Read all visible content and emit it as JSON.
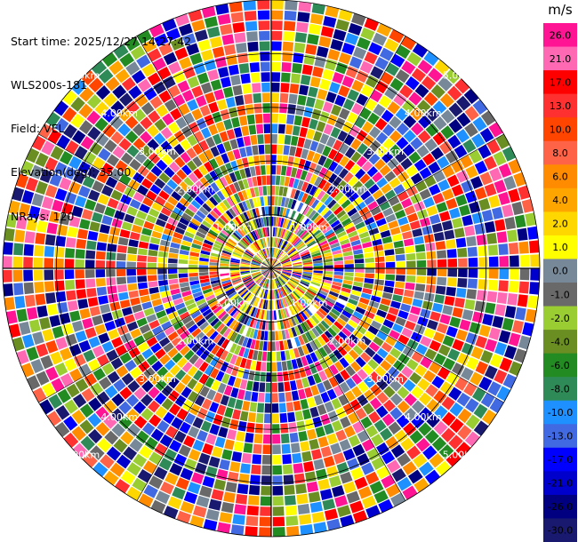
{
  "header": {
    "start_time": "Start time: 2025/12/27 14:27:42",
    "instrument": "WLS200s-181",
    "field": "Field: VEL",
    "elevation": "Elevation(deg): 35.00",
    "nrays": "NRays: 120"
  },
  "chart_data": {
    "type": "heatmap",
    "projection": "polar-ppi",
    "field": "VEL",
    "nrays": 120,
    "range_rings_labels": [
      "1.00km",
      "2.00km",
      "3.00km",
      "4.00km",
      "5.00km"
    ],
    "range_rings_km": [
      1,
      2,
      3,
      4,
      5
    ],
    "max_range_km": 5.0,
    "colorbar": {
      "unit": "m/s",
      "tick_labels": [
        "26.0",
        "21.0",
        "17.0",
        "13.0",
        "10.0",
        "8.0",
        "6.0",
        "4.0",
        "2.0",
        "1.0",
        "0.0",
        "-1.0",
        "-2.0",
        "-4.0",
        "-6.0",
        "-8.0",
        "-10.0",
        "-13.0",
        "-17.0",
        "-21.0",
        "-26.0",
        "-30.0"
      ],
      "colors": [
        "#ff1493",
        "#ff69b4",
        "#ff0000",
        "#ff3030",
        "#ff4500",
        "#ff6347",
        "#ff8c00",
        "#ffa500",
        "#ffd700",
        "#ffff00",
        "#778899",
        "#696969",
        "#9acd32",
        "#6b8e23",
        "#228b22",
        "#2e8b57",
        "#1e90ff",
        "#4169e1",
        "#0000ff",
        "#0000cd",
        "#000080",
        "#191970"
      ]
    }
  }
}
